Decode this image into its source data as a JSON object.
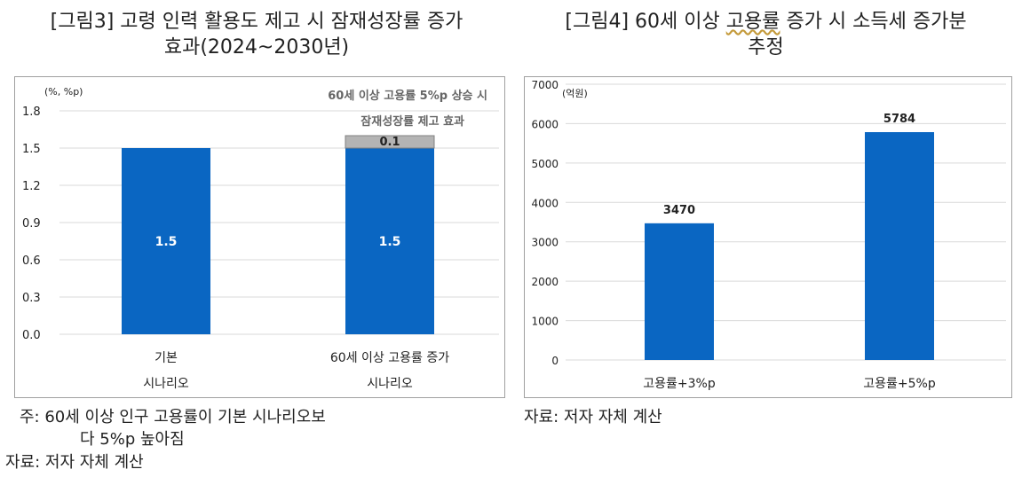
{
  "figure3": {
    "title_line1": "[그림3] 고령 인력 활용도 제고 시 잠재성장률 증가",
    "title_line2": "효과(2024~2030년)",
    "note_line1": "주: 60세 이상 인구 고용률이 기본 시나리오보",
    "note_line2": "다 5%p 높아짐",
    "source": "자료: 저자 자체 계산"
  },
  "figure4": {
    "title_line1_prefix": "[그림4] 60세 이상 ",
    "title_line1_link": "고용률",
    "title_line1_suffix": " 증가 시 소득세 증가분",
    "title_line2": "추정",
    "source": "자료: 저자 자체 계산"
  },
  "chart_data": [
    {
      "type": "bar",
      "stacked": true,
      "unit_label": "(%, %p)",
      "categories": [
        [
          "기본",
          "시나리오"
        ],
        [
          "60세 이상 고용률 증가",
          "시나리오"
        ]
      ],
      "series": [
        {
          "values": [
            1.5,
            1.5
          ],
          "color": "#0a66c2",
          "labels": [
            "1.5",
            "1.5"
          ]
        },
        {
          "values": [
            0,
            0.1
          ],
          "color": "#b4b4b4",
          "labels": [
            "",
            "0.1"
          ]
        }
      ],
      "annotation": [
        "60세 이상 고용률 5%p 상승 시",
        "잠재성장률 제고 효과"
      ],
      "yticks": [
        "0.0",
        "0.3",
        "0.6",
        "0.9",
        "1.2",
        "1.5",
        "1.8"
      ],
      "ylim": [
        0,
        1.8
      ],
      "grid": true
    },
    {
      "type": "bar",
      "unit_label": "(억원)",
      "categories": [
        "고용률+3%p",
        "고용률+5%p"
      ],
      "values": [
        3470,
        5784
      ],
      "labels": [
        "3470",
        "5784"
      ],
      "color": "#0a66c2",
      "yticks": [
        "0",
        "1000",
        "2000",
        "3000",
        "4000",
        "5000",
        "6000",
        "7000"
      ],
      "ylim": [
        0,
        7000
      ],
      "grid": true
    }
  ]
}
